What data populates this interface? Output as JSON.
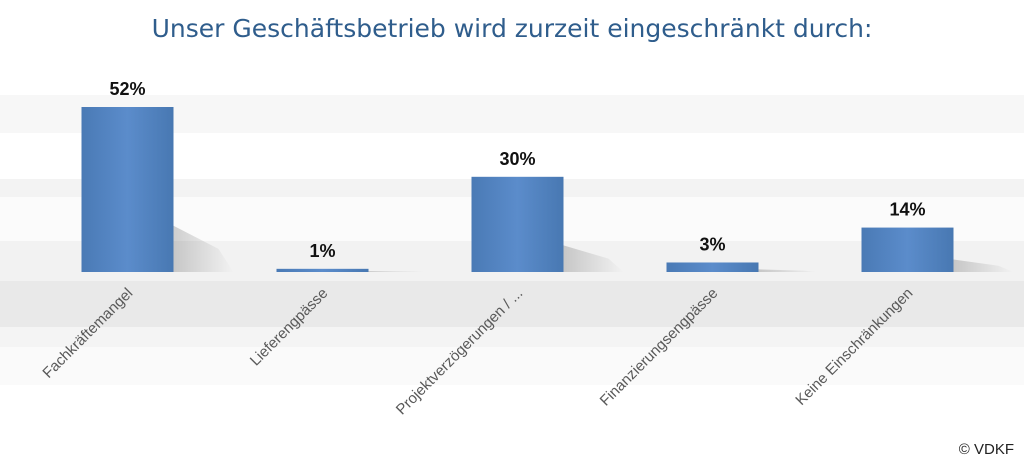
{
  "chart_data": {
    "type": "bar",
    "title": "Unser Geschäftsbetrieb wird zurzeit eingeschränkt durch:",
    "categories": [
      "Fachkräftemangel",
      "Lieferengpässe",
      "Projektverzögerungen / ...",
      "Finanzierungsengpässe",
      "Keine Einschränkungen"
    ],
    "values": [
      52,
      1,
      30,
      3,
      14
    ],
    "data_labels": [
      "52%",
      "1%",
      "30%",
      "3%",
      "14%"
    ],
    "unit": "%",
    "ylim": [
      0,
      52
    ],
    "grid": false,
    "legend": "none",
    "bar_color": "#4f81bd"
  },
  "footer": {
    "copyright": "© VDKF"
  }
}
